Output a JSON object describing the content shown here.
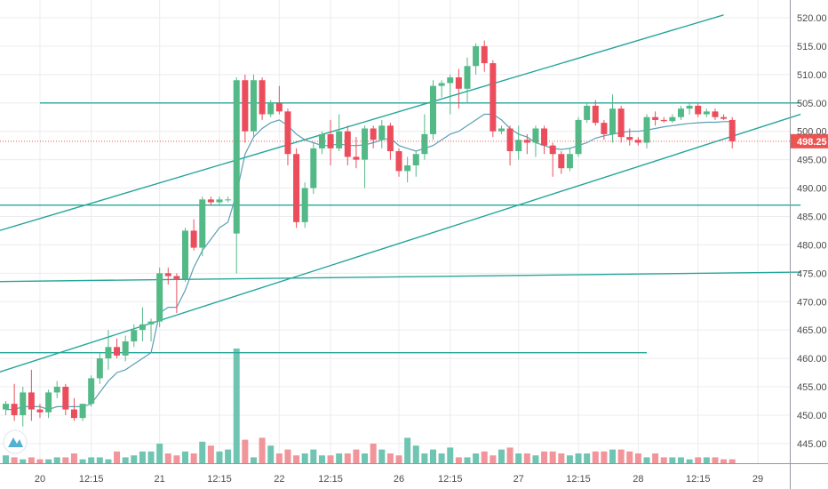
{
  "chart_data": {
    "type": "candlestick",
    "price_axis": {
      "ticks": [
        "520.00",
        "515.00",
        "510.00",
        "505.00",
        "500.00",
        "495.00",
        "490.00",
        "485.00",
        "480.00",
        "475.00",
        "470.00",
        "465.00",
        "460.00",
        "455.00",
        "450.00",
        "445.00"
      ],
      "ylim": [
        440.5,
        521.5
      ]
    },
    "time_axis": {
      "ticks": [
        "20",
        "12:15",
        "21",
        "12:15",
        "22",
        "12:15",
        "26",
        "12:15",
        "27",
        "12:15",
        "28",
        "12:15",
        "29"
      ]
    },
    "last_price": {
      "value": 498.25,
      "label": "498.25"
    },
    "candles": [
      [
        451.0,
        452.5,
        450.0,
        452.0
      ],
      [
        452.0,
        455.5,
        449.0,
        450.0
      ],
      [
        450.0,
        455.0,
        448.0,
        454.0
      ],
      [
        454.0,
        458.0,
        449.0,
        451.0
      ],
      [
        451.0,
        452.0,
        449.5,
        450.5
      ],
      [
        450.5,
        454.5,
        449.5,
        454.0
      ],
      [
        454.0,
        456.0,
        453.0,
        455.0
      ],
      [
        455.0,
        455.5,
        450.0,
        451.0
      ],
      [
        451.0,
        453.0,
        449.0,
        449.5
      ],
      [
        449.5,
        452.0,
        449.0,
        452.0
      ],
      [
        452.0,
        457.0,
        451.5,
        456.5
      ],
      [
        456.5,
        461.0,
        455.5,
        460.0
      ],
      [
        460.0,
        465.0,
        458.0,
        462.0
      ],
      [
        462.0,
        463.5,
        460.0,
        460.5
      ],
      [
        460.5,
        464.0,
        459.5,
        463.0
      ],
      [
        463.0,
        466.0,
        462.0,
        465.0
      ],
      [
        465.0,
        469.0,
        463.0,
        466.0
      ],
      [
        466.0,
        467.0,
        463.0,
        466.5
      ],
      [
        466.5,
        476.0,
        465.5,
        475.0
      ],
      [
        475.0,
        476.0,
        473.0,
        474.5
      ],
      [
        474.5,
        475.0,
        468.0,
        474.0
      ],
      [
        474.0,
        483.0,
        473.5,
        482.5
      ],
      [
        482.5,
        484.5,
        479.0,
        479.5
      ],
      [
        479.5,
        488.5,
        478.0,
        488.0
      ],
      [
        488.0,
        488.5,
        487.0,
        487.5
      ],
      [
        487.5,
        488.5,
        487.0,
        488.0
      ],
      [
        488.0,
        488.5,
        487.5,
        488.0
      ],
      [
        482.0,
        509.5,
        475.0,
        509.0
      ],
      [
        509.0,
        510.0,
        498.0,
        500.0
      ],
      [
        500.0,
        510.0,
        499.0,
        509.0
      ],
      [
        509.0,
        509.5,
        502.0,
        503.0
      ],
      [
        503.0,
        505.5,
        502.5,
        505.0
      ],
      [
        505.0,
        508.0,
        503.0,
        503.5
      ],
      [
        503.5,
        504.0,
        494.0,
        496.0
      ],
      [
        496.0,
        497.0,
        483.0,
        484.0
      ],
      [
        484.0,
        491.0,
        483.0,
        490.0
      ],
      [
        490.0,
        498.0,
        489.0,
        497.0
      ],
      [
        497.0,
        500.0,
        496.0,
        499.5
      ],
      [
        499.5,
        502.0,
        494.0,
        497.0
      ],
      [
        497.0,
        503.0,
        496.5,
        500.0
      ],
      [
        500.0,
        501.0,
        494.0,
        495.5
      ],
      [
        495.5,
        499.0,
        493.5,
        495.0
      ],
      [
        495.0,
        501.0,
        490.0,
        500.5
      ],
      [
        500.5,
        501.0,
        497.0,
        498.5
      ],
      [
        498.5,
        502.0,
        497.0,
        501.0
      ],
      [
        501.0,
        501.5,
        495.0,
        496.5
      ],
      [
        496.5,
        497.0,
        492.0,
        493.0
      ],
      [
        493.0,
        495.5,
        491.0,
        494.0
      ],
      [
        494.0,
        496.5,
        492.0,
        496.0
      ],
      [
        496.0,
        503.0,
        495.0,
        499.5
      ],
      [
        499.5,
        509.0,
        498.5,
        508.0
      ],
      [
        508.0,
        509.0,
        506.0,
        508.5
      ],
      [
        508.5,
        510.0,
        503.0,
        509.5
      ],
      [
        509.5,
        511.0,
        504.0,
        507.5
      ],
      [
        507.5,
        513.0,
        505.0,
        511.5
      ],
      [
        511.5,
        515.5,
        510.0,
        515.0
      ],
      [
        515.0,
        516.0,
        510.5,
        512.0
      ],
      [
        512.0,
        512.5,
        499.0,
        500.0
      ],
      [
        500.0,
        501.0,
        499.5,
        500.5
      ],
      [
        500.5,
        501.0,
        494.0,
        496.5
      ],
      [
        496.5,
        501.0,
        495.0,
        498.5
      ],
      [
        498.5,
        499.5,
        496.0,
        498.0
      ],
      [
        498.0,
        501.0,
        495.5,
        500.5
      ],
      [
        500.5,
        501.0,
        496.0,
        497.5
      ],
      [
        497.5,
        498.0,
        492.0,
        496.0
      ],
      [
        496.0,
        496.5,
        492.5,
        493.5
      ],
      [
        493.5,
        497.0,
        493.0,
        496.0
      ],
      [
        496.0,
        502.5,
        495.5,
        502.0
      ],
      [
        502.0,
        505.0,
        501.5,
        504.5
      ],
      [
        504.5,
        505.5,
        501.0,
        501.5
      ],
      [
        501.5,
        502.0,
        498.5,
        499.5
      ],
      [
        499.5,
        506.5,
        498.0,
        504.0
      ],
      [
        504.0,
        504.5,
        498.0,
        499.0
      ],
      [
        499.0,
        500.5,
        497.5,
        498.5
      ],
      [
        498.5,
        499.0,
        497.5,
        498.0
      ],
      [
        498.0,
        503.0,
        497.0,
        502.5
      ],
      [
        502.5,
        503.5,
        501.0,
        502.0
      ],
      [
        502.0,
        502.5,
        501.5,
        501.8
      ],
      [
        501.8,
        503.0,
        501.5,
        502.5
      ],
      [
        502.5,
        504.5,
        502.0,
        504.0
      ],
      [
        504.0,
        505.0,
        503.0,
        504.5
      ],
      [
        504.5,
        505.0,
        502.5,
        503.0
      ],
      [
        503.0,
        504.0,
        502.5,
        503.5
      ],
      [
        503.5,
        504.0,
        502.0,
        502.5
      ],
      [
        502.5,
        503.0,
        502.0,
        502.2
      ],
      [
        502.0,
        502.5,
        497.0,
        498.25
      ]
    ],
    "volumes": [
      4,
      3,
      2,
      3,
      2,
      2,
      3,
      3,
      5,
      2,
      3,
      3,
      2,
      6,
      3,
      4,
      6,
      6,
      10,
      5,
      4,
      6,
      5,
      11,
      9,
      6,
      7,
      5,
      12,
      3,
      13,
      9,
      5,
      7,
      4,
      5,
      7,
      4,
      4,
      5,
      5,
      7,
      5,
      10,
      7,
      5,
      4,
      13,
      9,
      5,
      7,
      5,
      8,
      3,
      3,
      5,
      6,
      4,
      7,
      8,
      5,
      5,
      4,
      6,
      6,
      5,
      4,
      5,
      5,
      6,
      6,
      7,
      7,
      6,
      5,
      3,
      5,
      3,
      3,
      3,
      2,
      3,
      3,
      3,
      2,
      2
    ],
    "volume_spikes": [
      {
        "index": 27,
        "value": 100
      }
    ],
    "moving_average": [
      451.0,
      451.0,
      451.5,
      451.5,
      451.5,
      451.0,
      451.5,
      451.5,
      451.5,
      451.5,
      452.0,
      454.0,
      456.0,
      457.5,
      458.0,
      459.0,
      460.0,
      461.0,
      468.0,
      469.0,
      469.0,
      472.0,
      476.0,
      479.0,
      481.0,
      483.0,
      484.0,
      489.0,
      496.0,
      499.0,
      500.5,
      501.5,
      502.0,
      501.0,
      499.5,
      498.5,
      498.0,
      497.5,
      497.5,
      497.8,
      497.5,
      497.5,
      497.6,
      498.0,
      498.5,
      498.8,
      497.5,
      497.0,
      496.5,
      497.0,
      497.5,
      498.5,
      499.5,
      500.0,
      501.0,
      502.0,
      503.0,
      503.0,
      502.0,
      500.5,
      499.5,
      499.0,
      498.0,
      497.5,
      497.0,
      496.8,
      497.0,
      497.5,
      498.0,
      498.8,
      499.2,
      499.5,
      499.8,
      500.0,
      500.0,
      500.2,
      500.5,
      500.8,
      501.0,
      501.2,
      501.4,
      501.5,
      501.6,
      501.6,
      501.7,
      501.7
    ],
    "trend_lines": [
      {
        "start": [
          -3,
          481.5
        ],
        "end": [
          84,
          520.5
        ]
      },
      {
        "start": [
          -3,
          456.5
        ],
        "end": [
          93,
          503.0
        ]
      },
      {
        "start": [
          4,
          505.0
        ],
        "end": [
          93,
          505.0
        ]
      },
      {
        "start": [
          -3,
          487.0
        ],
        "end": [
          93,
          487.0
        ]
      },
      {
        "start": [
          -3,
          473.5
        ],
        "end": [
          93,
          475.2
        ]
      },
      {
        "start": [
          -3,
          461.0
        ],
        "end": [
          75,
          461.0
        ]
      }
    ],
    "colors": {
      "up": "#53b987",
      "down": "#eb4d5c",
      "up_volume": "#5fbfaa",
      "down_volume": "#f08a8f",
      "trend_line": "#26a69a",
      "moving_average": "#5b9fb5",
      "last_price": "#ef5350",
      "grid": "#ececf0",
      "axis_text": "#4a4a4a",
      "logo": "#54b0d0"
    },
    "logo_icon": "tradingview-logo-icon"
  }
}
